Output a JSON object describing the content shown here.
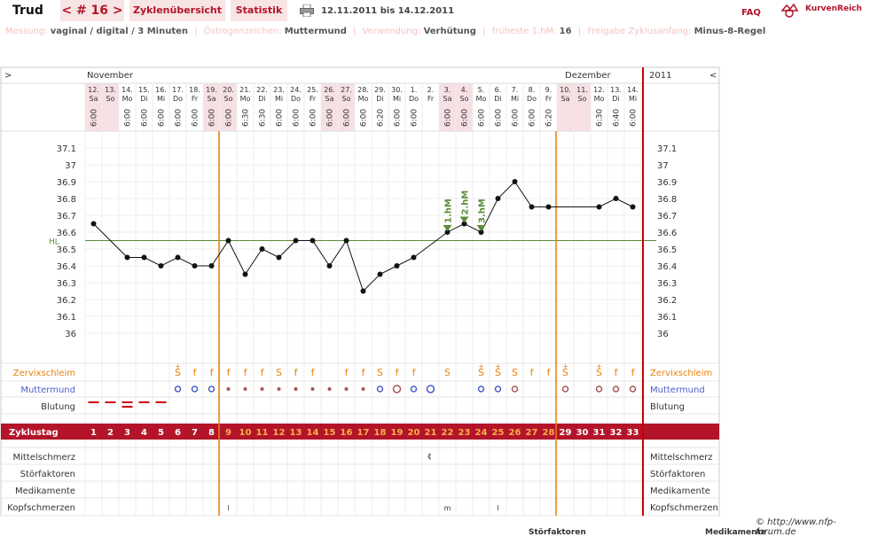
{
  "header": {
    "user": "Trud",
    "cycle_nav": "< # 16 >",
    "tab_overview": "Zyklenübersicht",
    "tab_stats": "Statistik",
    "date_range": "12.11.2011 bis 14.12.2011",
    "faq": "FAQ",
    "brand": "KurvenReich"
  },
  "info": [
    {
      "label": "Messung:",
      "value": "vaginal / digital / 3 Minuten"
    },
    {
      "label": "Östrogenzeichen:",
      "value": "Muttermund"
    },
    {
      "label": "Verwendung:",
      "value": "Verhütung"
    },
    {
      "label": "früheste 1.hM:",
      "value": "16"
    },
    {
      "label": "Freigabe Zyklusanfang:",
      "value": "Minus-8-Regel"
    }
  ],
  "colors": {
    "accent": "#b4142a",
    "orange": "#e8820a",
    "blue": "#4a5fc8",
    "hl": "#5b8c3a"
  },
  "chart_data": {
    "type": "line",
    "months": [
      {
        "name": "November",
        "at": 0
      },
      {
        "name": "Dezember",
        "at": 19
      }
    ],
    "year_label": "2011",
    "nav_left": ">",
    "nav_right": "<",
    "dates": [
      "12.",
      "13.",
      "14.",
      "15.",
      "16.",
      "17.",
      "18.",
      "19.",
      "20.",
      "21.",
      "22.",
      "23.",
      "24.",
      "25.",
      "26.",
      "27.",
      "28.",
      "29.",
      "30.",
      "1.",
      "2.",
      "3.",
      "4.",
      "5.",
      "6.",
      "7.",
      "8.",
      "9.",
      "10.",
      "11.",
      "12.",
      "13.",
      "14."
    ],
    "weekdays": [
      "Sa",
      "So",
      "Mo",
      "Di",
      "Mi",
      "Do",
      "Fr",
      "Sa",
      "So",
      "Mo",
      "Di",
      "Mi",
      "Do",
      "Fr",
      "Sa",
      "So",
      "Mo",
      "Di",
      "Mi",
      "Do",
      "Fr",
      "Sa",
      "So",
      "Mo",
      "Di",
      "Mi",
      "Do",
      "Fr",
      "Sa",
      "So",
      "Mo",
      "Di",
      "Mi"
    ],
    "times": [
      "6:00",
      "",
      "6:00",
      "6:00",
      "6:00",
      "6:00",
      "6:00",
      "6:00",
      "6:00",
      "6:30",
      "6:30",
      "6:00",
      "6:00",
      "6:00",
      "6:00",
      "6:00",
      "6:00",
      "6:20",
      "6:00",
      "6:00",
      "",
      "6:00",
      "6:00",
      "6:00",
      "6:00",
      "6:00",
      "6:00",
      "6:20",
      "",
      "",
      "6:30",
      "6:40",
      "6:00"
    ],
    "temps": [
      36.65,
      null,
      36.45,
      36.45,
      36.4,
      36.45,
      36.4,
      36.4,
      36.55,
      36.35,
      36.5,
      36.45,
      36.55,
      36.55,
      36.4,
      36.55,
      36.25,
      36.35,
      36.4,
      36.45,
      null,
      36.6,
      36.65,
      36.6,
      36.8,
      36.9,
      36.75,
      36.75,
      null,
      null,
      36.75,
      36.8,
      36.75
    ],
    "y_ticks": [
      "37.1",
      "37",
      "36.9",
      "36.8",
      "36.7",
      "36.6",
      "36.5",
      "36.4",
      "36.3",
      "36.2",
      "36.1",
      "36"
    ],
    "ylim": [
      36.0,
      37.1
    ],
    "hl_value": 36.55,
    "hl_label": "HL",
    "markers": [
      {
        "label": "1.hM",
        "day": 21
      },
      {
        "label": "2.hM",
        "day": 22
      },
      {
        "label": "3.hM",
        "day": 23
      }
    ],
    "vlines_orange": [
      7.5,
      27.5
    ],
    "rows": {
      "zervix": {
        "label": "Zervixschleim",
        "values": [
          "",
          "",
          "",
          "",
          "",
          "S+",
          "f",
          "f",
          "f",
          "f",
          "f",
          "S",
          "f",
          "f",
          "",
          "f",
          "f",
          "S",
          "f",
          "f",
          "",
          "S",
          "",
          "S+",
          "S+",
          "S",
          "f",
          "f",
          "S+",
          "",
          "S+",
          "f",
          "f"
        ]
      },
      "muttermund": {
        "label": "Muttermund"
      },
      "blutung": {
        "label": "Blutung"
      },
      "zyklustag": {
        "label": "Zyklustag",
        "values": [
          "1",
          "2",
          "3",
          "4",
          "5",
          "6",
          "7",
          "8",
          "9",
          "10",
          "11",
          "12",
          "13",
          "14",
          "15",
          "16",
          "17",
          "18",
          "19",
          "20",
          "21",
          "22",
          "23",
          "24",
          "25",
          "26",
          "27",
          "28",
          "29",
          "30",
          "31",
          "32",
          "33"
        ]
      },
      "mittelschmerz": {
        "label": "Mittelschmerz"
      },
      "stoerfaktoren": {
        "label": "Störfaktoren"
      },
      "medikamente": {
        "label": "Medikamente"
      },
      "kopfschmerzen": {
        "label": "Kopfschmerzen",
        "values": {
          "8": "l",
          "21": "m",
          "24": "l"
        }
      }
    }
  },
  "footer": {
    "copyright": "© http://www.nfp-forum.de",
    "cut1": "Störfaktoren",
    "cut2": "Medikamente"
  }
}
